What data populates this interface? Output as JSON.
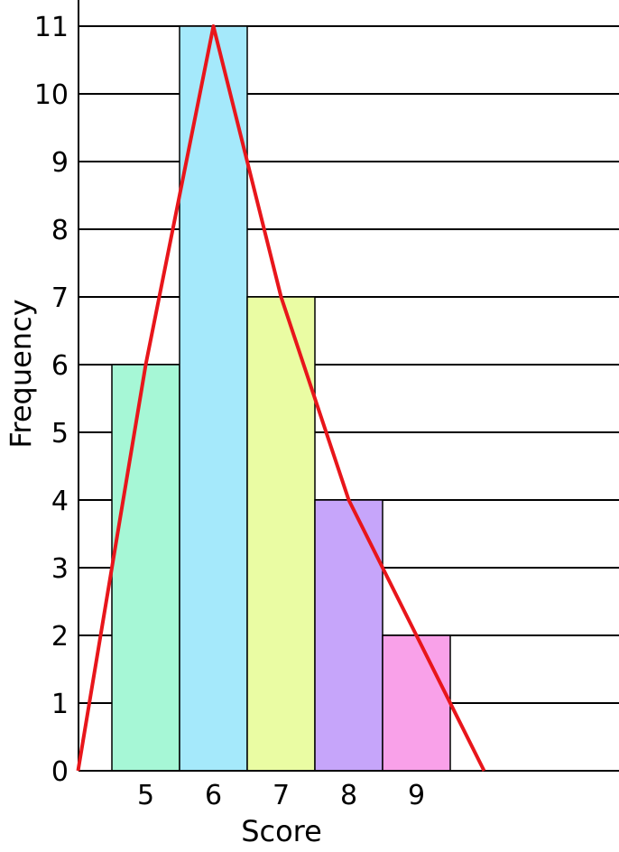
{
  "chart_data": {
    "type": "bar",
    "subtype": "histogram-with-frequency-polygon",
    "xlabel": "Score",
    "ylabel": "Frequency",
    "categories": [
      "5",
      "6",
      "7",
      "8",
      "9"
    ],
    "values": [
      6,
      11,
      7,
      4,
      2
    ],
    "bar_colors": [
      "#a6f7d6",
      "#a5e9fb",
      "#eafca3",
      "#c6a5fa",
      "#f9a1e9"
    ],
    "bar_outline_color": "#000000",
    "ylim": [
      0,
      11
    ],
    "yticks": [
      0,
      1,
      2,
      3,
      4,
      5,
      6,
      7,
      8,
      9,
      10,
      11
    ],
    "grid": "horizontal",
    "frequency_polygon": {
      "color": "#e8161b",
      "x": [
        4,
        5,
        6,
        7,
        8,
        9,
        10
      ],
      "y": [
        0,
        6,
        11,
        7,
        4,
        2,
        0
      ]
    }
  }
}
